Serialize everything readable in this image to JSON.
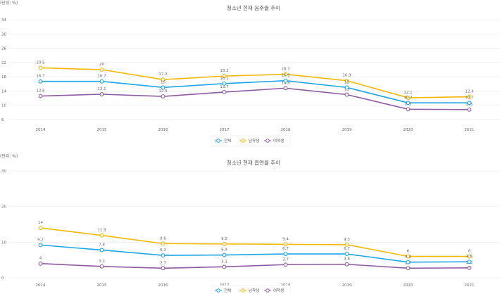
{
  "chart_data": [
    {
      "type": "line",
      "title": "청소년 현재 음주율 추이",
      "unit_label": "(단위: %)",
      "categories": [
        "2014",
        "2015",
        "2016",
        "2017",
        "2018",
        "2019",
        "2020",
        "2021"
      ],
      "ylim": [
        6,
        34
      ],
      "yticks": [
        6,
        10,
        14,
        18,
        22,
        26,
        30,
        34
      ],
      "grid": true,
      "legend": "bottom",
      "series": [
        {
          "name": "전체",
          "color": "#1aa6e8",
          "values": [
            16.7,
            16.7,
            15,
            16.1,
            16.9,
            15,
            10.7,
            10.7
          ]
        },
        {
          "name": "남학생",
          "color": "#f5b800",
          "values": [
            20.5,
            20,
            17.2,
            18.2,
            18.7,
            16.9,
            12.1,
            12.4
          ]
        },
        {
          "name": "여학생",
          "color": "#8e5aa3",
          "values": [
            12.6,
            13.1,
            12.5,
            13.7,
            14.8,
            13,
            8.9,
            8.8
          ]
        }
      ]
    },
    {
      "type": "line",
      "title": "청소년 현재 흡연율 추이",
      "unit_label": "(단위: %)",
      "categories": [
        "2014",
        "2015",
        "2016",
        "2017",
        "2018",
        "2019",
        "2020",
        "2021"
      ],
      "ylim": [
        0,
        30
      ],
      "yticks": [
        0,
        10,
        20,
        30
      ],
      "grid": true,
      "legend": "bottom",
      "series": [
        {
          "name": "전체",
          "color": "#1aa6e8",
          "values": [
            9.2,
            7.8,
            6.3,
            6.4,
            6.7,
            6.7,
            4.4,
            4.5
          ]
        },
        {
          "name": "남학생",
          "color": "#f5b800",
          "values": [
            14,
            11.9,
            9.6,
            9.5,
            9.4,
            9.3,
            6,
            6
          ]
        },
        {
          "name": "여학생",
          "color": "#8e5aa3",
          "values": [
            4,
            3.2,
            2.7,
            3.1,
            3.7,
            3.8,
            2.7,
            2.8
          ]
        }
      ]
    }
  ]
}
